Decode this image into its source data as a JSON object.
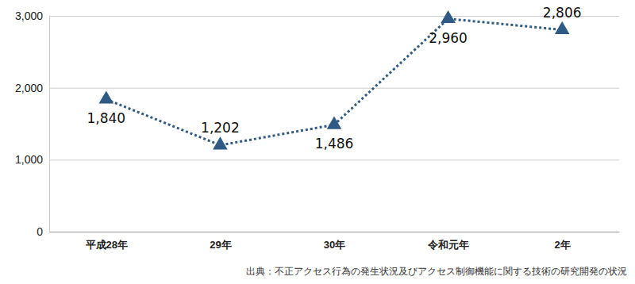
{
  "chart_data": {
    "type": "line",
    "categories": [
      "平成28年",
      "29年",
      "30年",
      "令和元年",
      "2年"
    ],
    "values": [
      1840,
      1202,
      1486,
      2960,
      2806
    ],
    "value_labels": [
      "1,840",
      "1,202",
      "1,486",
      "2,960",
      "2,806"
    ],
    "color": "#2f5a84",
    "marker": "triangle",
    "line_style": "dotted",
    "data_labels": true,
    "ylim": [
      0,
      3000
    ],
    "yticks": [
      0,
      {
        "value": 1000,
        "label": "1,000"
      },
      {
        "value": 2000,
        "label": "2,000"
      },
      {
        "value": 3000,
        "label": "3,000"
      }
    ],
    "grid": true,
    "annotations": [
      "出典：不正アクセス行為の発生状況及びアクセス制御機能に関する技術の研究開発の状況"
    ]
  }
}
